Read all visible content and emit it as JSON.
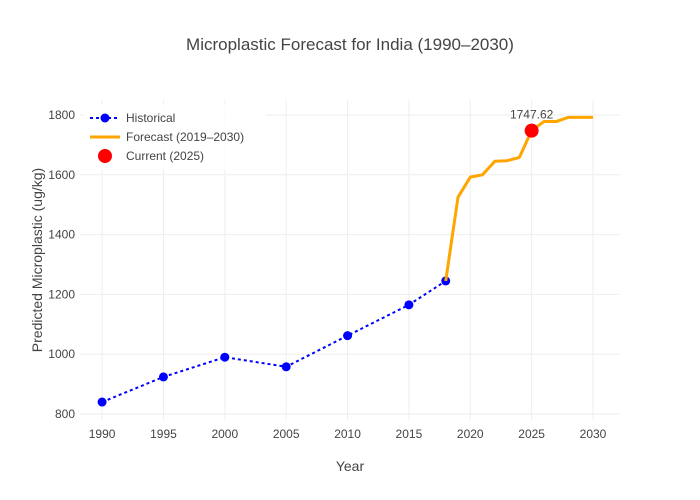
{
  "chart_data": {
    "type": "line",
    "title": "Microplastic Forecast for India (1990–2030)",
    "xlabel": "Year",
    "ylabel": "Predicted Microplastic (ug/kg)",
    "xlim": [
      1988.2,
      2032.2
    ],
    "ylim": [
      780,
      1850
    ],
    "x_ticks": [
      1990,
      1995,
      2000,
      2005,
      2010,
      2015,
      2020,
      2025,
      2030
    ],
    "y_ticks": [
      800,
      1000,
      1200,
      1400,
      1600,
      1800
    ],
    "grid": true,
    "legend_position": "top-left",
    "series": [
      {
        "name": "Historical",
        "style": "dotted-line-markers",
        "color": "#0000ff",
        "x": [
          1990,
          1995,
          2000,
          2005,
          2010,
          2015,
          2018
        ],
        "y": [
          840,
          924,
          990,
          958,
          1062,
          1165,
          1245
        ]
      },
      {
        "name": "Forecast (2019–2030)",
        "style": "solid-line",
        "color": "#ffa500",
        "x": [
          2018,
          2019,
          2020,
          2021,
          2022,
          2023,
          2024,
          2025,
          2026,
          2027,
          2028,
          2029,
          2030
        ],
        "y": [
          1245,
          1525,
          1592,
          1600,
          1645,
          1647,
          1658,
          1747.62,
          1778,
          1778,
          1792,
          1792,
          1792
        ]
      },
      {
        "name": "Current (2025)",
        "style": "marker",
        "color": "#ff0000",
        "x": [
          2025
        ],
        "y": [
          1747.62
        ]
      }
    ],
    "annotations": [
      {
        "text": "1747.62",
        "x": 2025,
        "y": 1747.62
      }
    ]
  }
}
